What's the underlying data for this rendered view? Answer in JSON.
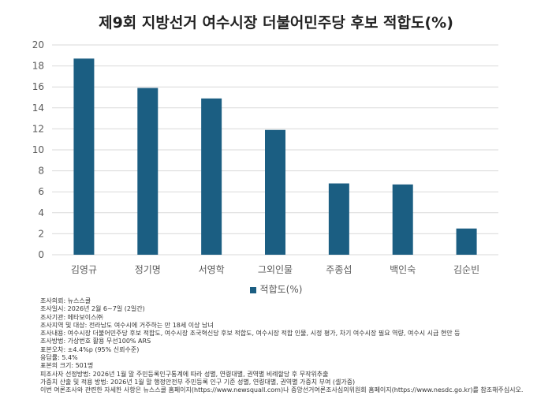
{
  "colors": {
    "bar": "#1b5e82",
    "grid": "#d9d9d9",
    "axis_text": "#595959"
  },
  "chart_data": {
    "type": "bar",
    "title": "제9회 지방선거 여수시장 더불어민주당 후보 적합도(%)",
    "categories": [
      "김영규",
      "정기명",
      "서영학",
      "그외인물",
      "주종섭",
      "백인숙",
      "김순빈"
    ],
    "series": [
      {
        "name": "적합도(%)",
        "values": [
          18.7,
          15.9,
          14.9,
          11.9,
          6.8,
          6.7,
          2.5
        ]
      }
    ],
    "ylim": [
      0,
      20
    ],
    "yticks": [
      0,
      2,
      4,
      6,
      8,
      10,
      12,
      14,
      16,
      18,
      20
    ],
    "grid": true,
    "legend_position": "bottom",
    "xlabel": "",
    "ylabel": ""
  },
  "notes": [
    "조사의뢰: 뉴스스쿨",
    "조사일시: 2026년 2월 6~7일 (2일간)",
    "조사기관: 메타보이스㈜",
    "조사지역 및 대상: 전라남도 여수시에 거주하는 만 18세 이상 남녀",
    "조사내용: 여수시장 더불어민주당 후보 적합도, 여수시장 조국혁신당 후보 적합도, 여수시장 적합 인물, 시정 평가, 차기 여수시장 필요 역량, 여수시 시급 현안 등",
    "조사방법: 가상번호 활용 무선100% ARS",
    "표본오차: ±4.4%p (95% 신뢰수준)",
    "응답률: 5.4%",
    "표본의 크기: 501명",
    "피조사자 선정방법: 2026년 1월 말 주민등록인구통계에 따라 성별, 연령대별, 권역별 비례할당 후 무작위추출",
    "가중치 산출 및 적용 방법: 2026년 1월 말 행정안전부 주민등록 인구 기준 성별, 연령대별, 권역별 가중치 부여 (셀가중)",
    "이번 여론조사와 관련한 자세한 사항은 뉴스스쿨 홈페이지(https://www.newsquall.com)나 중앙선거여론조사심의위원회 홈페이지(https://www.nesdc.go.kr)를 참조해주십시오."
  ]
}
